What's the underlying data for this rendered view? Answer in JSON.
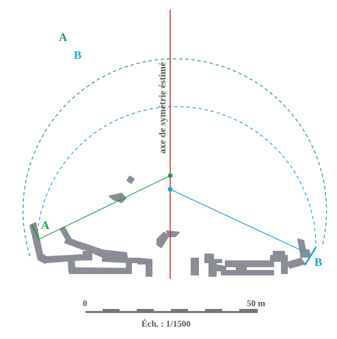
{
  "labels": {
    "arc_a": "A",
    "arc_b": "B",
    "chord_a": "A",
    "chord_b": "B",
    "axis": "axe de symétrie éstimé"
  },
  "scale": {
    "start": "0",
    "end": "50 m",
    "caption": "Éch. : 1/1500"
  },
  "colors": {
    "circle_a": "#1e9e4a",
    "circle_b": "#1aa3d6",
    "axis": "#d62a2a",
    "ruins": "#8a8c96",
    "text": "#555555",
    "scale_bar": "#777777"
  }
}
